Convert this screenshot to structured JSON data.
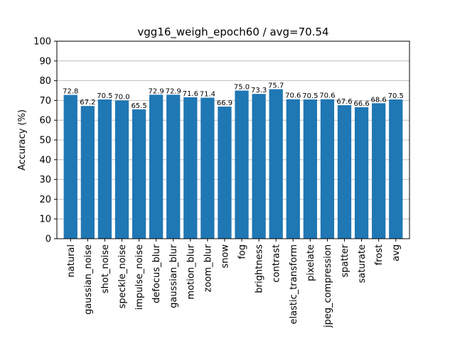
{
  "chart_data": {
    "type": "bar",
    "title": "vgg16_weigh_epoch60 / avg=70.54",
    "xlabel": "",
    "ylabel": "Accuracy (%)",
    "ylim": [
      0,
      100
    ],
    "yticks": [
      0,
      10,
      20,
      30,
      40,
      50,
      60,
      70,
      80,
      90,
      100
    ],
    "grid": "horizontal",
    "bar_color": "#1f77b4",
    "categories": [
      "natural",
      "gaussian_noise",
      "shot_noise",
      "speckle_noise",
      "impulse_noise",
      "defocus_blur",
      "gaussian_blur",
      "motion_blur",
      "zoom_blur",
      "snow",
      "fog",
      "brightness",
      "contrast",
      "elastic_transform",
      "pixelate",
      "jpeg_compression",
      "spatter",
      "saturate",
      "frost",
      "avg"
    ],
    "values": [
      72.8,
      67.2,
      70.5,
      70.0,
      65.5,
      72.9,
      72.9,
      71.6,
      71.4,
      66.9,
      75.0,
      73.3,
      75.7,
      70.6,
      70.5,
      70.6,
      67.6,
      66.6,
      68.6,
      70.5
    ],
    "value_labels": [
      "72.8",
      "67.2",
      "70.5",
      "70.0",
      "65.5",
      "72.9",
      "72.9",
      "71.6",
      "71.4",
      "66.9",
      "75.0",
      "73.3",
      "75.7",
      "70.6",
      "70.5",
      "70.6",
      "67.6",
      "66.6",
      "68.6",
      "70.5"
    ]
  }
}
